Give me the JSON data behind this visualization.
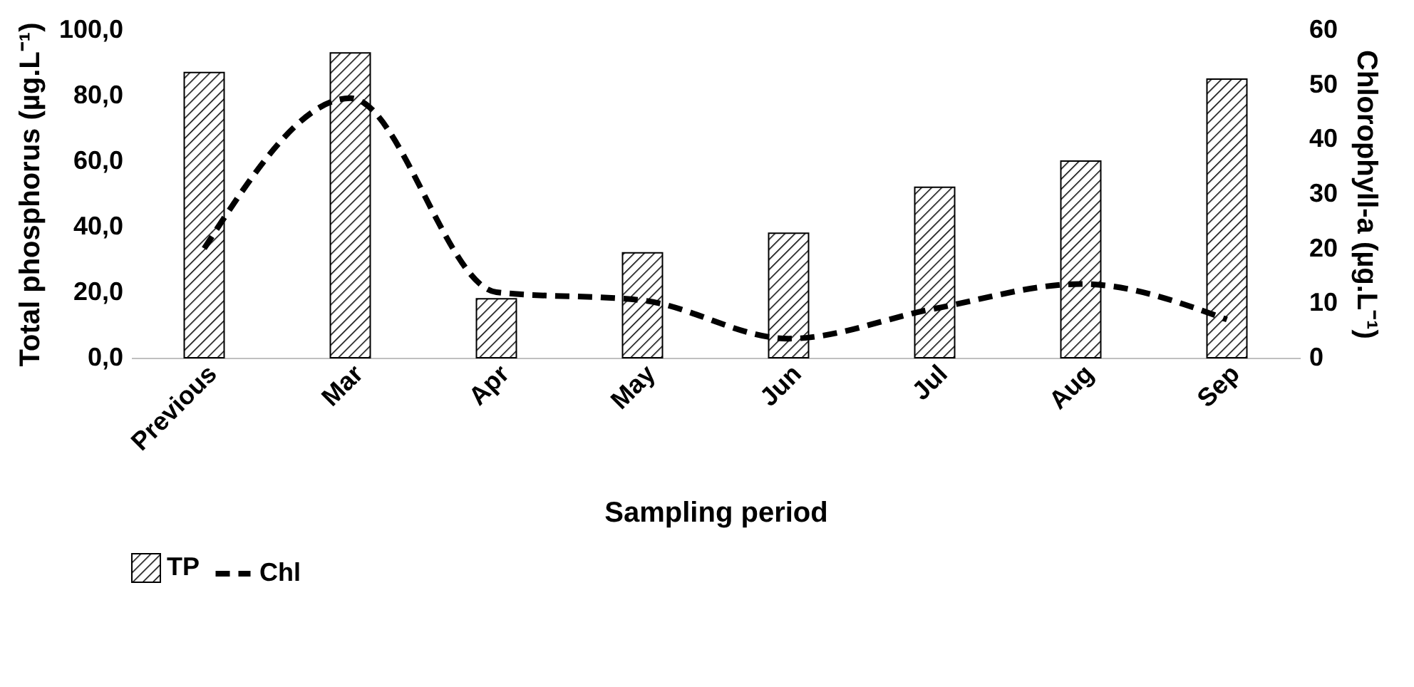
{
  "chart_data": {
    "type": "bar",
    "xlabel": "Sampling period",
    "ylabel": "Total phosphorus (µg.L⁻¹)",
    "y2label": "Chlorophyll-a (µg.L⁻¹)",
    "categories": [
      "Previous",
      "Mar",
      "Apr",
      "May",
      "Jun",
      "Jul",
      "Aug",
      "Sep"
    ],
    "series": [
      {
        "name": "TP",
        "color": "#000000",
        "values": [
          87,
          93,
          18,
          32,
          38,
          52,
          60,
          85
        ]
      },
      {
        "name": "Chl",
        "type": "line",
        "axis": "y2",
        "color": "#000000",
        "line_style": "dashed",
        "values": [
          20,
          47.5,
          12,
          10.5,
          3.5,
          9,
          13.5,
          7
        ]
      }
    ],
    "ylim": [
      0,
      100
    ],
    "yticks": [
      {
        "value": 0,
        "label": "0,0"
      },
      {
        "value": 20,
        "label": "20,0"
      },
      {
        "value": 40,
        "label": "40,0"
      },
      {
        "value": 60,
        "label": "60,0"
      },
      {
        "value": 80,
        "label": "80,0"
      },
      {
        "value": 100,
        "label": "100,0"
      }
    ],
    "y2lim": [
      0,
      60
    ],
    "y2ticks": [
      0,
      10,
      20,
      30,
      40,
      50,
      60
    ],
    "grid": false,
    "legend": "bottom"
  }
}
